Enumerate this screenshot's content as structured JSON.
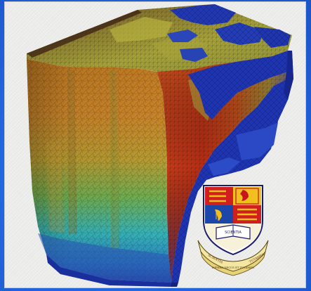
{
  "image": {
    "subject": "3D tetrahedral-mesh ocean model cube",
    "background_color": "#2369e3",
    "panel_color": "#ececea"
  },
  "palette": {
    "deep_blue": "#1a2f9e",
    "cyan": "#2fb6c9",
    "green": "#5cae5a",
    "yellow": "#c9b23a",
    "orange": "#d26a26",
    "red": "#b82a15"
  },
  "crest": {
    "book_text": "SCIENTIA",
    "scroll_left": "SCIENTIA",
    "scroll_center": "IMPERII DECUS ET TUTAMEN",
    "scroll_right": "TUTAMEN"
  }
}
